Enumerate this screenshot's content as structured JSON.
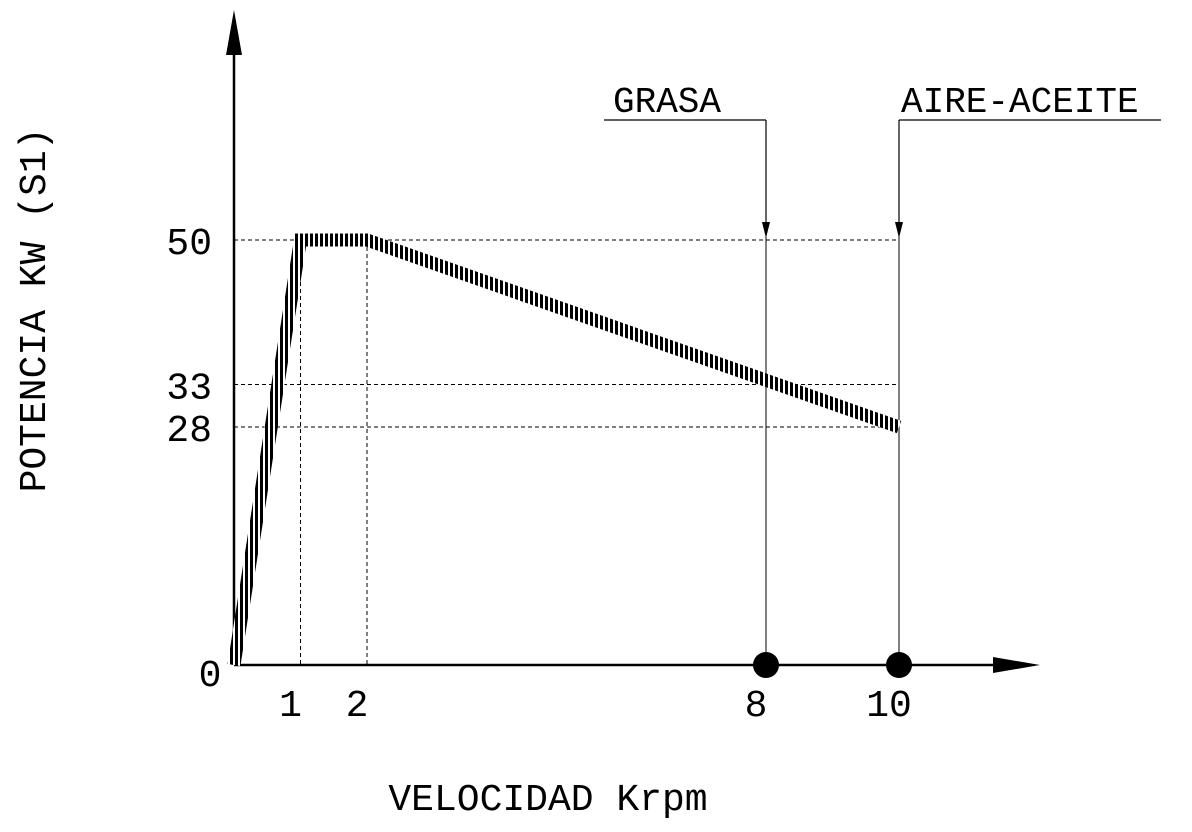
{
  "chart_data": {
    "type": "line",
    "xlabel": "VELOCIDAD Krpm",
    "ylabel": "POTENCIA  KW (S1)",
    "xlim": [
      0,
      12
    ],
    "ylim": [
      0,
      60
    ],
    "x_ticks": [
      "0",
      "1",
      "2",
      "8",
      "10"
    ],
    "y_ticks": [
      "50",
      "33",
      "28"
    ],
    "series": [
      {
        "points": [
          {
            "x": 0,
            "y": 0
          },
          {
            "x": 1,
            "y": 50
          },
          {
            "x": 2,
            "y": 50
          },
          {
            "x": 10,
            "y": 28
          }
        ]
      }
    ],
    "markers": [
      {
        "x": 8,
        "y": 0
      },
      {
        "x": 10,
        "y": 0
      }
    ],
    "annotations": [
      {
        "text": "GRASA",
        "x": 8
      },
      {
        "text": "AIRE-ACEITE",
        "x": 10
      }
    ],
    "reference_lines": {
      "horizontal": [
        50,
        33,
        28
      ],
      "vertical": [
        1,
        2,
        8,
        10
      ]
    },
    "grid": false
  }
}
